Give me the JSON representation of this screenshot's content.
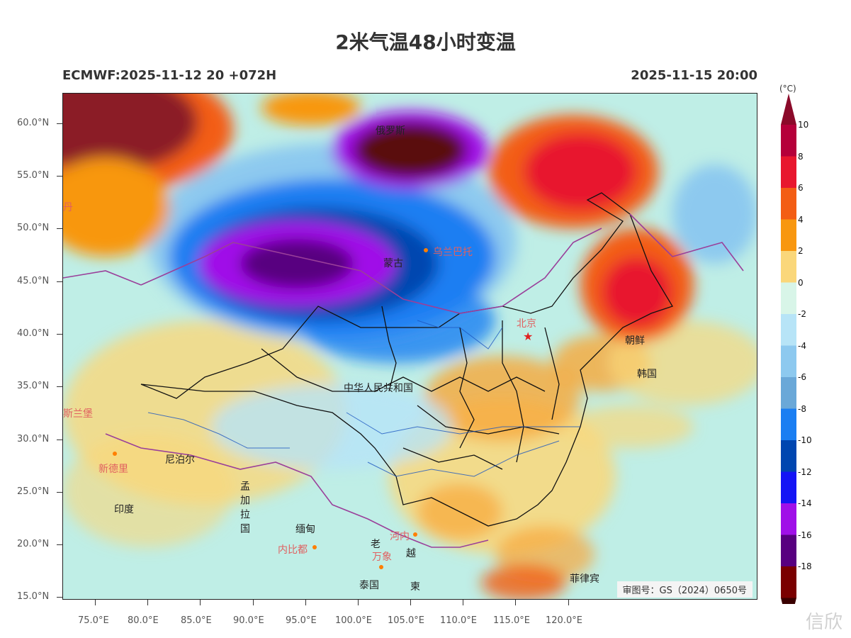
{
  "title": "2米气温48小时变温",
  "run_label": "ECMWF:2025-11-12 20 +072H",
  "valid_time": "2025-11-15 20:00",
  "unit_label": "(°C)",
  "lat_labels": [
    "60.0°N",
    "55.0°N",
    "50.0°N",
    "45.0°N",
    "40.0°N",
    "35.0°N",
    "30.0°N",
    "25.0°N",
    "20.0°N",
    "15.0°N"
  ],
  "lon_labels": [
    "75.0°E",
    "80.0°E",
    "85.0°E",
    "90.0°E",
    "95.0°E",
    "100.0°E",
    "105.0°E",
    "110.0°E",
    "115.0°E",
    "120.0°E"
  ],
  "colorbar": {
    "labels": [
      "10",
      "8",
      "6",
      "4",
      "2",
      "0",
      "-2",
      "-4",
      "-6",
      "-8",
      "-10",
      "-12",
      "-14",
      "-16",
      "-18"
    ],
    "colors": [
      "#b5003a",
      "#e8172e",
      "#f35d14",
      "#f8970f",
      "#fad77a",
      "#d8f5e8",
      "#b7e4f7",
      "#8dc9ef",
      "#6aa8d8",
      "#1a7ef2",
      "#0046b0",
      "#1414f5",
      "#a010e8",
      "#580080",
      "#7a0000"
    ],
    "top_color": "#8b0a2a",
    "bottom_color": "#3a0000"
  },
  "places": {
    "russia": "俄罗斯",
    "mongolia": "蒙古",
    "ulaanbaatar": "乌兰巴托",
    "china": "中华人民共和国",
    "beijing": "北京",
    "north_korea": "朝鲜",
    "south_korea": "韩国",
    "nepal": "尼泊尔",
    "new_delhi": "新德里",
    "india": "印度",
    "bangladesh": "孟加拉国",
    "myanmar": "缅甸",
    "naypyidaw": "内比都",
    "hanoi": "河内",
    "laos": "老",
    "vientiane": "万象",
    "vietnam": "越",
    "thailand": "泰国",
    "cambodia": "柬",
    "philippines": "菲律宾",
    "islamabad": "斯兰堡",
    "edge_cn": "丹"
  },
  "approval_number": "审图号：GS（2024）0650号",
  "watermark": "信欣"
}
